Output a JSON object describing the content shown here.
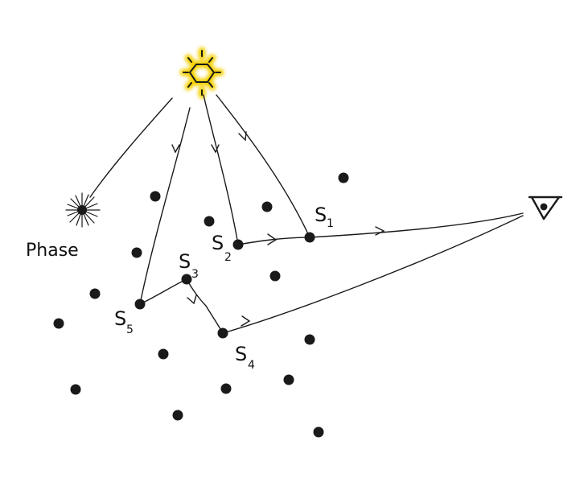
{
  "diagram": {
    "phase_label": "Phase",
    "scatter_events": [
      {
        "letter": "S",
        "index": "1"
      },
      {
        "letter": "S",
        "index": "2"
      },
      {
        "letter": "S",
        "index": "3"
      },
      {
        "letter": "S",
        "index": "4"
      },
      {
        "letter": "S",
        "index": "5"
      }
    ],
    "colors": {
      "sun_glow": "#f5d000",
      "ink": "#1a1a1a"
    },
    "icons": [
      "sun-icon",
      "eye-icon",
      "phase-function-icon"
    ]
  }
}
